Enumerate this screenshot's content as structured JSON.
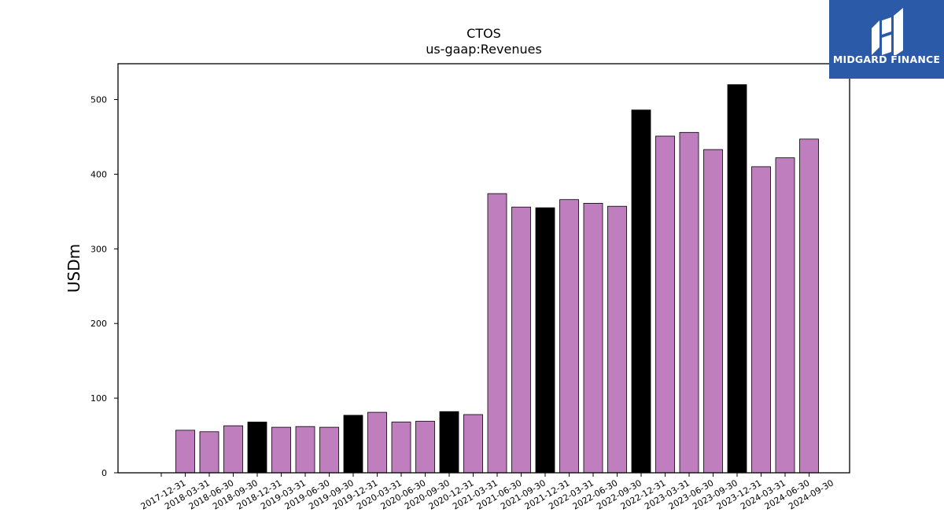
{
  "chart_data": {
    "type": "bar",
    "title": "CTOS",
    "subtitle": "us-gaap:Revenues",
    "ylabel": "USDm",
    "xlabel": "",
    "ylim": [
      0,
      548
    ],
    "yticks": [
      0,
      100,
      200,
      300,
      400,
      500
    ],
    "grid": false,
    "legend": "none",
    "colors": {
      "quarter": "#bf7fbf",
      "year_end": "#000000",
      "edge": "#000000"
    },
    "categories": [
      "2017-12-31",
      "2018-03-31",
      "2018-06-30",
      "2018-09-30",
      "2018-12-31",
      "2019-03-31",
      "2019-06-30",
      "2019-09-30",
      "2019-12-31",
      "2020-03-31",
      "2020-06-30",
      "2020-09-30",
      "2020-12-31",
      "2021-03-31",
      "2021-06-30",
      "2021-09-30",
      "2021-12-31",
      "2022-03-31",
      "2022-06-30",
      "2022-09-30",
      "2022-12-31",
      "2023-03-31",
      "2023-06-30",
      "2023-09-30",
      "2023-12-31",
      "2024-03-31",
      "2024-06-30",
      "2024-09-30"
    ],
    "values": [
      null,
      57,
      55,
      63,
      68,
      61,
      62,
      61,
      77,
      81,
      68,
      69,
      82,
      78,
      374,
      356,
      355,
      366,
      361,
      357,
      486,
      451,
      456,
      433,
      520,
      410,
      422,
      447
    ],
    "year_end": [
      false,
      false,
      false,
      false,
      true,
      false,
      false,
      false,
      true,
      false,
      false,
      false,
      true,
      false,
      false,
      false,
      true,
      false,
      false,
      false,
      true,
      false,
      false,
      false,
      true,
      false,
      false,
      false
    ]
  },
  "logo": {
    "text": "MIDGARD FINANCE",
    "background": "#2a5aa8"
  }
}
